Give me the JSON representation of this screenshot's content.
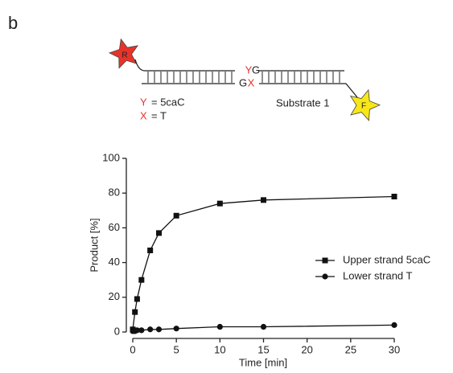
{
  "panel_label": "b",
  "diagram": {
    "star_left": "R",
    "star_right": "F",
    "upper_pair": [
      "Y",
      "G"
    ],
    "lower_pair": [
      "G",
      "X"
    ],
    "key": [
      {
        "symbol": "Y",
        "text": "= 5caC"
      },
      {
        "symbol": "X",
        "text": "= T"
      }
    ],
    "substrate": "Substrate 1"
  },
  "chart_data": {
    "type": "line",
    "x_label": "Time [min]",
    "y_label": "Product [%]",
    "x": [
      0,
      0.25,
      0.5,
      1,
      2,
      3,
      5,
      10,
      15,
      30
    ],
    "series": [
      {
        "name": "Upper strand 5caC",
        "color": "#111111",
        "marker": "square",
        "values": [
          1.5,
          11.5,
          19,
          30,
          47,
          57,
          67,
          74,
          76,
          78
        ]
      },
      {
        "name": "Lower strand T",
        "color": "#111111",
        "marker": "circle",
        "values": [
          0.5,
          0.5,
          1,
          1,
          1.5,
          1.5,
          2,
          3,
          3,
          4
        ]
      }
    ],
    "xlim": [
      0,
      30
    ],
    "ylim": [
      0,
      100
    ],
    "xticks": [
      0,
      5,
      10,
      15,
      20,
      25,
      30
    ],
    "yticks": [
      0,
      20,
      40,
      60,
      80,
      100
    ],
    "legend": "right"
  }
}
